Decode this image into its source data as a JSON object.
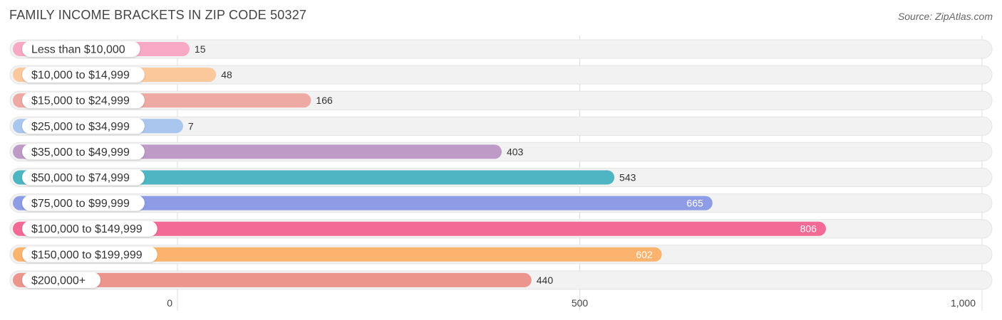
{
  "title": "FAMILY INCOME BRACKETS IN ZIP CODE 50327",
  "source": "Source: ZipAtlas.com",
  "chart_data": {
    "type": "bar",
    "orientation": "horizontal",
    "title": "FAMILY INCOME BRACKETS IN ZIP CODE 50327",
    "categories": [
      "Less than $10,000",
      "$10,000 to $14,999",
      "$15,000 to $24,999",
      "$25,000 to $34,999",
      "$35,000 to $49,999",
      "$50,000 to $74,999",
      "$75,000 to $99,999",
      "$100,000 to $149,999",
      "$150,000 to $199,999",
      "$200,000+"
    ],
    "values": [
      15,
      48,
      166,
      7,
      403,
      543,
      665,
      806,
      602,
      440
    ],
    "value_labels": [
      "15",
      "48",
      "166",
      "7",
      "403",
      "543",
      "665",
      "806",
      "602",
      "440"
    ],
    "colors": [
      "#f7a8c4",
      "#fbc89b",
      "#eea9a4",
      "#a9c6ee",
      "#be9ac6",
      "#4db6c2",
      "#8d9ce4",
      "#f46a96",
      "#fbb36e",
      "#eb958d"
    ],
    "xlim": [
      0,
      1000
    ],
    "xticks": [
      0,
      500,
      1000
    ],
    "xtick_labels": [
      "0",
      "500",
      "1,000"
    ],
    "grid": true,
    "legend": "none"
  }
}
